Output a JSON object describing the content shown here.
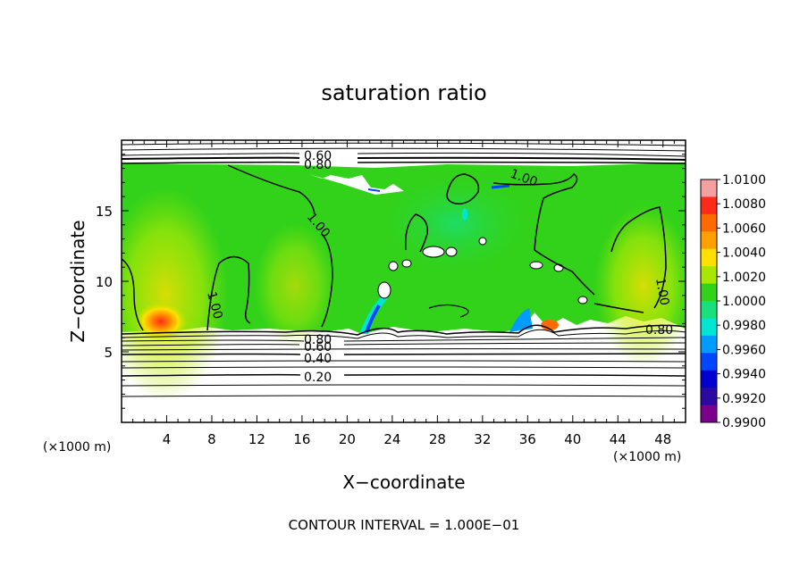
{
  "chart_data": {
    "type": "heatmap",
    "title": "saturation ratio",
    "xlabel": "X−coordinate",
    "ylabel": "Z−coordinate",
    "x_unit_left": "(×1000 m)",
    "x_unit_right": "(×1000 m)",
    "xlim": [
      0,
      50
    ],
    "ylim": [
      0,
      20
    ],
    "x_ticks": [
      "4",
      "8",
      "12",
      "16",
      "20",
      "24",
      "28",
      "32",
      "36",
      "40",
      "44",
      "48"
    ],
    "x_tick_values": [
      4,
      8,
      12,
      16,
      20,
      24,
      28,
      32,
      36,
      40,
      44,
      48
    ],
    "y_ticks": [
      "5",
      "10",
      "15"
    ],
    "y_tick_values": [
      5,
      10,
      15
    ],
    "footer": "CONTOUR INTERVAL = 1.000E−01",
    "colorbar": {
      "labels": [
        "1.0100",
        "1.0080",
        "1.0060",
        "1.0040",
        "1.0020",
        "1.0000",
        "0.9980",
        "0.9960",
        "0.9940",
        "0.9920",
        "0.9900"
      ],
      "min": 0.99,
      "max": 1.01,
      "colors": [
        "#f4a0a0",
        "#ff2a1a",
        "#ff6a00",
        "#ffa000",
        "#ffe000",
        "#a8e800",
        "#32d21a",
        "#18e07a",
        "#00e6d2",
        "#009cff",
        "#0046ff",
        "#0000d2",
        "#2a0aa0",
        "#7a008c"
      ]
    },
    "contour_labels": [
      "0.60",
      "0.80",
      "1.00",
      "1.00",
      "1.00",
      "1.00",
      "0.80",
      "0.60",
      "0.40",
      "0.20",
      "0.80"
    ],
    "grid": false,
    "legend": "colorbar-right"
  }
}
